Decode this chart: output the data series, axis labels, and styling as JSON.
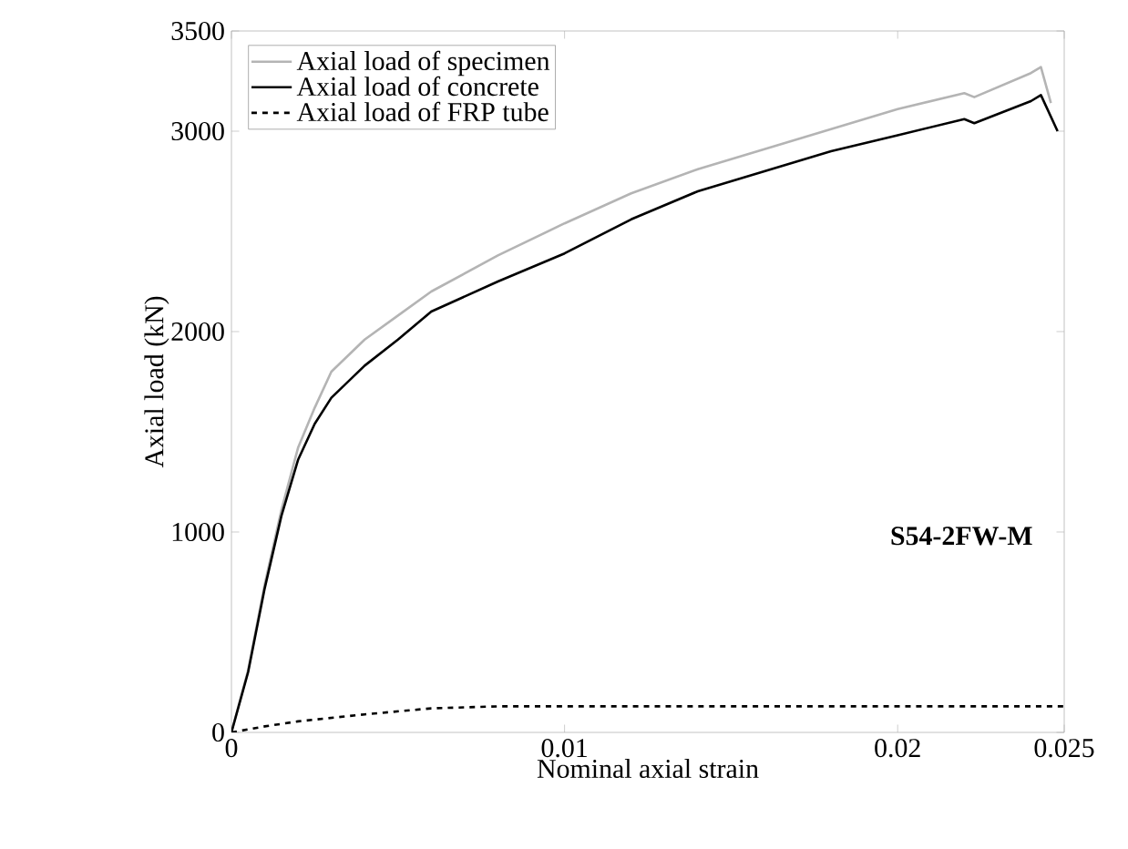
{
  "chart_data": {
    "type": "line",
    "xlabel": "Nominal axial strain",
    "ylabel": "Axial load (kN)",
    "xlim": [
      0,
      0.025
    ],
    "ylim": [
      0,
      3500
    ],
    "xticks": [
      0,
      0.01,
      0.02,
      0.025
    ],
    "yticks": [
      0,
      1000,
      2000,
      3000,
      3500
    ],
    "grid": false,
    "legend": "top left",
    "annotations": [
      "**S54-2FW-M**"
    ],
    "series": [
      {
        "name": "Axial load of specimen",
        "color": "#b4b4b4",
        "line_style": "solid",
        "x": [
          0,
          0.0005,
          0.001,
          0.0015,
          0.002,
          0.0025,
          0.003,
          0.004,
          0.005,
          0.006,
          0.008,
          0.01,
          0.012,
          0.014,
          0.016,
          0.018,
          0.02,
          0.022,
          0.0223,
          0.024,
          0.0243,
          0.0246
        ],
        "values": [
          0,
          310,
          740,
          1110,
          1420,
          1620,
          1800,
          1960,
          2080,
          2200,
          2380,
          2540,
          2690,
          2810,
          2910,
          3010,
          3110,
          3190,
          3170,
          3290,
          3320,
          3140
        ]
      },
      {
        "name": "Axial load of concrete",
        "color": "#000000",
        "line_style": "solid",
        "x": [
          0,
          0.0005,
          0.001,
          0.0015,
          0.002,
          0.0025,
          0.003,
          0.004,
          0.005,
          0.006,
          0.008,
          0.01,
          0.012,
          0.014,
          0.016,
          0.018,
          0.02,
          0.022,
          0.0223,
          0.024,
          0.0243,
          0.0248
        ],
        "values": [
          0,
          300,
          720,
          1080,
          1360,
          1540,
          1670,
          1830,
          1960,
          2100,
          2250,
          2390,
          2560,
          2700,
          2800,
          2900,
          2980,
          3060,
          3040,
          3150,
          3180,
          3000
        ]
      },
      {
        "name": "Axial load of FRP tube",
        "color": "#000000",
        "line_style": "dashed",
        "x": [
          0,
          0.001,
          0.002,
          0.004,
          0.006,
          0.008,
          0.01,
          0.015,
          0.02,
          0.025
        ],
        "values": [
          0,
          30,
          55,
          90,
          120,
          130,
          130,
          130,
          130,
          130
        ]
      }
    ]
  }
}
